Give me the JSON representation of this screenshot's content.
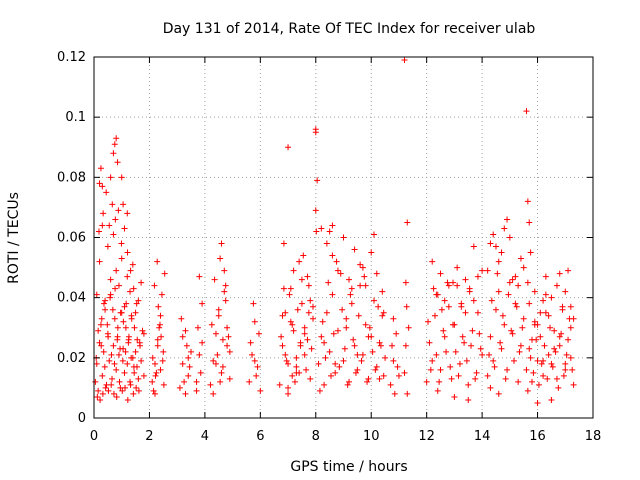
{
  "chart_data": {
    "type": "scatter",
    "title": "Day 131 of 2014, Rate Of TEC Index for receiver ulab",
    "xlabel": "GPS time / hours",
    "ylabel": "ROTI / TECUs",
    "xlim": [
      0,
      18
    ],
    "ylim": [
      0,
      0.12
    ],
    "xticks": [
      "0",
      "2",
      "4",
      "6",
      "8",
      "10",
      "12",
      "14",
      "16",
      "18"
    ],
    "yticks": [
      "0",
      "0.02",
      "0.04",
      "0.06",
      "0.08",
      "0.1",
      "0.12"
    ],
    "grid": true,
    "marker": "+",
    "color": "#ff0000",
    "series": [
      {
        "name": "ROTI",
        "x": [
          0.05,
          0.1,
          0.15,
          0.2,
          0.25,
          0.3,
          0.35,
          0.4,
          0.45,
          0.5,
          0.55,
          0.6,
          0.65,
          0.7,
          0.75,
          0.8,
          0.85,
          0.9,
          0.95,
          1.0,
          1.05,
          1.1,
          1.15,
          1.2,
          1.25,
          1.3,
          1.35,
          1.4,
          1.45,
          1.5,
          1.55,
          1.6,
          1.65,
          1.7,
          1.75,
          1.8,
          0.1,
          0.2,
          0.3,
          0.4,
          0.5,
          0.6,
          0.7,
          0.8,
          0.9,
          1.0,
          1.1,
          1.2,
          1.3,
          1.4,
          1.5,
          1.6,
          1.7,
          1.8,
          0.12,
          0.22,
          0.32,
          0.42,
          0.52,
          0.62,
          0.72,
          0.82,
          0.92,
          1.02,
          1.12,
          1.22,
          1.32,
          1.42,
          1.52,
          1.62,
          0.15,
          0.28,
          0.36,
          0.48,
          0.58,
          0.68,
          0.76,
          0.86,
          0.96,
          1.06,
          1.16,
          1.26,
          1.36,
          1.46,
          1.56,
          1.66,
          0.18,
          0.33,
          0.44,
          0.55,
          0.66,
          0.77,
          0.88,
          0.99,
          1.1,
          1.21,
          1.32,
          1.43,
          1.54,
          0.08,
          0.26,
          0.39,
          0.51,
          0.63,
          0.74,
          0.84,
          0.94,
          1.04,
          1.14,
          1.24,
          1.34,
          1.44,
          0.2,
          0.25,
          0.3,
          0.6,
          0.7,
          0.75,
          0.8,
          0.85,
          1.0,
          1.05,
          1.2,
          2.1,
          2.2,
          2.3,
          2.4,
          2.5,
          2.15,
          2.25,
          2.35,
          2.45,
          2.55,
          2.12,
          2.22,
          2.32,
          2.42,
          2.52,
          2.18,
          2.28,
          2.38,
          2.48,
          2.2,
          2.3,
          2.4,
          3.1,
          3.2,
          3.3,
          3.4,
          3.5,
          3.15,
          3.25,
          3.35,
          3.45,
          3.3,
          3.2,
          3.4,
          3.7,
          3.8,
          3.9,
          3.75,
          3.85,
          3.8,
          3.7,
          3.9,
          4.2,
          4.3,
          4.4,
          4.5,
          4.6,
          4.7,
          4.8,
          4.9,
          4.25,
          4.35,
          4.45,
          4.55,
          4.65,
          4.75,
          4.85,
          4.3,
          4.5,
          4.7,
          4.9,
          4.4,
          4.6,
          4.8,
          4.55,
          4.75,
          4.65,
          5.6,
          5.7,
          5.8,
          5.9,
          6.0,
          5.65,
          5.75,
          5.85,
          5.95,
          5.8,
          6.7,
          6.8,
          6.9,
          7.0,
          7.1,
          7.2,
          7.3,
          7.4,
          7.5,
          7.6,
          7.7,
          7.8,
          7.9,
          6.75,
          6.85,
          6.95,
          7.05,
          7.15,
          7.25,
          7.35,
          7.45,
          7.55,
          7.65,
          7.75,
          7.85,
          6.8,
          7.0,
          7.2,
          7.4,
          7.6,
          7.8,
          6.9,
          7.1,
          7.3,
          7.5,
          7.7,
          7.9,
          7.0,
          7.3,
          7.6,
          6.85,
          7.15,
          7.45,
          7.75,
          7.0,
          8.0,
          8.0,
          8.05,
          8.0,
          8.02,
          8.1,
          8.2,
          8.3,
          8.4,
          8.5,
          8.6,
          8.7,
          8.8,
          8.9,
          9.0,
          9.1,
          9.2,
          9.3,
          9.4,
          9.5,
          9.6,
          9.7,
          9.8,
          9.9,
          10.0,
          10.1,
          10.2,
          10.3,
          10.4,
          10.5,
          8.15,
          8.25,
          8.35,
          8.45,
          8.55,
          8.65,
          8.75,
          8.85,
          8.95,
          9.05,
          9.15,
          9.25,
          9.35,
          9.45,
          9.55,
          9.65,
          9.75,
          9.85,
          9.95,
          10.05,
          10.15,
          10.25,
          10.35,
          10.45,
          8.2,
          8.4,
          8.6,
          8.8,
          9.0,
          9.2,
          9.4,
          9.6,
          9.8,
          10.0,
          10.2,
          10.4,
          8.3,
          8.7,
          9.1,
          9.5,
          9.9,
          10.3,
          8.5,
          8.6,
          9.3,
          9.7,
          10.1,
          10.45,
          10.7,
          10.8,
          10.9,
          11.0,
          10.75,
          10.85,
          10.95,
          10.8,
          11.2,
          11.3,
          11.25,
          11.35,
          11.2,
          11.3,
          11.28,
          11.25,
          12.0,
          12.1,
          12.2,
          12.3,
          12.4,
          12.5,
          12.6,
          12.7,
          12.8,
          12.9,
          13.0,
          13.1,
          13.2,
          13.3,
          13.4,
          13.5,
          13.6,
          13.7,
          13.8,
          13.9,
          14.0,
          12.05,
          12.15,
          12.25,
          12.35,
          12.45,
          12.55,
          12.65,
          12.75,
          12.85,
          12.95,
          13.05,
          13.15,
          13.25,
          13.35,
          13.45,
          13.55,
          13.65,
          13.75,
          13.85,
          13.95,
          12.2,
          12.5,
          12.8,
          13.1,
          13.4,
          13.7,
          14.0,
          12.35,
          12.65,
          12.95,
          13.25,
          13.55,
          13.85,
          12.4,
          13.0,
          13.5,
          14.2,
          14.3,
          14.4,
          14.5,
          14.6,
          14.7,
          14.8,
          14.9,
          15.0,
          15.1,
          15.2,
          15.3,
          15.4,
          15.5,
          14.25,
          14.35,
          14.45,
          14.55,
          14.65,
          14.75,
          14.85,
          14.95,
          15.05,
          15.15,
          15.25,
          15.35,
          15.45,
          14.3,
          14.6,
          14.9,
          15.2,
          15.5,
          14.4,
          14.7,
          15.0,
          15.3,
          14.2,
          14.5,
          14.8,
          15.1,
          15.4,
          14.3,
          14.6,
          15.6,
          15.7,
          15.8,
          15.9,
          16.0,
          16.1,
          16.2,
          16.3,
          16.4,
          16.5,
          16.6,
          16.7,
          16.8,
          16.9,
          17.0,
          17.1,
          17.2,
          17.3,
          15.65,
          15.75,
          15.85,
          15.95,
          16.05,
          16.15,
          16.25,
          16.35,
          16.45,
          16.55,
          16.65,
          16.75,
          16.85,
          16.95,
          17.05,
          17.15,
          17.25,
          15.7,
          15.9,
          16.1,
          16.3,
          16.5,
          16.7,
          16.9,
          17.1,
          17.3,
          15.8,
          16.0,
          16.2,
          16.4,
          16.6,
          16.8,
          17.0,
          17.2,
          15.6,
          15.65,
          15.7,
          15.75,
          15.65,
          16.0,
          16.3,
          16.5,
          16.8,
          17.0,
          17.2,
          15.9,
          16.2
        ],
        "y": [
          0.012,
          0.018,
          0.009,
          0.025,
          0.031,
          0.014,
          0.022,
          0.036,
          0.011,
          0.028,
          0.019,
          0.041,
          0.013,
          0.024,
          0.033,
          0.016,
          0.027,
          0.021,
          0.01,
          0.035,
          0.023,
          0.015,
          0.03,
          0.018,
          0.026,
          0.012,
          0.034,
          0.02,
          0.015,
          0.022,
          0.017,
          0.013,
          0.025,
          0.019,
          0.029,
          0.014,
          0.041,
          0.052,
          0.064,
          0.039,
          0.057,
          0.046,
          0.061,
          0.049,
          0.044,
          0.053,
          0.037,
          0.047,
          0.042,
          0.051,
          0.035,
          0.039,
          0.045,
          0.028,
          0.007,
          0.006,
          0.008,
          0.01,
          0.009,
          0.011,
          0.008,
          0.007,
          0.012,
          0.009,
          0.01,
          0.006,
          0.011,
          0.008,
          0.01,
          0.009,
          0.029,
          0.033,
          0.038,
          0.031,
          0.04,
          0.036,
          0.043,
          0.03,
          0.035,
          0.032,
          0.038,
          0.027,
          0.033,
          0.03,
          0.026,
          0.024,
          0.062,
          0.068,
          0.075,
          0.064,
          0.071,
          0.066,
          0.069,
          0.058,
          0.063,
          0.055,
          0.049,
          0.043,
          0.038,
          0.02,
          0.024,
          0.017,
          0.027,
          0.021,
          0.018,
          0.026,
          0.023,
          0.019,
          0.022,
          0.025,
          0.02,
          0.017,
          0.078,
          0.083,
          0.077,
          0.08,
          0.088,
          0.091,
          0.093,
          0.085,
          0.08,
          0.071,
          0.068,
          0.012,
          0.018,
          0.026,
          0.034,
          0.022,
          0.009,
          0.015,
          0.03,
          0.041,
          0.048,
          0.02,
          0.014,
          0.037,
          0.027,
          0.011,
          0.044,
          0.052,
          0.031,
          0.019,
          0.008,
          0.024,
          0.016,
          0.01,
          0.018,
          0.029,
          0.014,
          0.022,
          0.033,
          0.012,
          0.024,
          0.017,
          0.008,
          0.027,
          0.02,
          0.012,
          0.021,
          0.038,
          0.03,
          0.015,
          0.047,
          0.009,
          0.025,
          0.011,
          0.019,
          0.028,
          0.036,
          0.015,
          0.042,
          0.024,
          0.013,
          0.031,
          0.046,
          0.021,
          0.053,
          0.017,
          0.039,
          0.027,
          0.008,
          0.034,
          0.049,
          0.022,
          0.018,
          0.058,
          0.03,
          0.012,
          0.044,
          0.026,
          0.012,
          0.021,
          0.032,
          0.017,
          0.009,
          0.025,
          0.038,
          0.014,
          0.028,
          0.019,
          0.011,
          0.024,
          0.035,
          0.018,
          0.043,
          0.029,
          0.015,
          0.052,
          0.038,
          0.021,
          0.047,
          0.013,
          0.033,
          0.027,
          0.058,
          0.019,
          0.041,
          0.031,
          0.012,
          0.036,
          0.025,
          0.054,
          0.016,
          0.044,
          0.023,
          0.034,
          0.01,
          0.049,
          0.015,
          0.028,
          0.039,
          0.021,
          0.032,
          0.017,
          0.046,
          0.026,
          0.037,
          0.008,
          0.02,
          0.03,
          0.043,
          0.014,
          0.024,
          0.035,
          0.09,
          0.096,
          0.095,
          0.079,
          0.069,
          0.062,
          0.018,
          0.027,
          0.011,
          0.035,
          0.022,
          0.041,
          0.015,
          0.029,
          0.048,
          0.019,
          0.033,
          0.012,
          0.038,
          0.024,
          0.016,
          0.044,
          0.021,
          0.031,
          0.013,
          0.027,
          0.039,
          0.017,
          0.025,
          0.034,
          0.02,
          0.009,
          0.032,
          0.02,
          0.045,
          0.014,
          0.028,
          0.052,
          0.017,
          0.036,
          0.023,
          0.011,
          0.041,
          0.026,
          0.015,
          0.034,
          0.019,
          0.047,
          0.012,
          0.03,
          0.022,
          0.016,
          0.037,
          0.024,
          0.014,
          0.063,
          0.058,
          0.054,
          0.049,
          0.06,
          0.046,
          0.056,
          0.051,
          0.044,
          0.055,
          0.048,
          0.042,
          0.025,
          0.018,
          0.03,
          0.021,
          0.027,
          0.013,
          0.062,
          0.064,
          0.043,
          0.05,
          0.061,
          0.035,
          0.011,
          0.019,
          0.028,
          0.014,
          0.024,
          0.008,
          0.017,
          0.033,
          0.119,
          0.065,
          0.045,
          0.03,
          0.015,
          0.008,
          0.037,
          0.024,
          0.012,
          0.025,
          0.019,
          0.034,
          0.041,
          0.016,
          0.029,
          0.022,
          0.037,
          0.013,
          0.031,
          0.044,
          0.018,
          0.027,
          0.035,
          0.011,
          0.024,
          0.039,
          0.015,
          0.028,
          0.021,
          0.032,
          0.016,
          0.043,
          0.021,
          0.012,
          0.036,
          0.027,
          0.045,
          0.017,
          0.031,
          0.022,
          0.014,
          0.038,
          0.025,
          0.019,
          0.042,
          0.029,
          0.013,
          0.035,
          0.023,
          0.052,
          0.048,
          0.044,
          0.05,
          0.046,
          0.057,
          0.049,
          0.041,
          0.039,
          0.045,
          0.037,
          0.043,
          0.047,
          0.009,
          0.007,
          0.006,
          0.014,
          0.027,
          0.019,
          0.036,
          0.042,
          0.023,
          0.031,
          0.016,
          0.045,
          0.028,
          0.038,
          0.012,
          0.024,
          0.033,
          0.021,
          0.039,
          0.017,
          0.048,
          0.025,
          0.034,
          0.013,
          0.041,
          0.029,
          0.019,
          0.037,
          0.022,
          0.03,
          0.058,
          0.052,
          0.066,
          0.047,
          0.05,
          0.061,
          0.055,
          0.06,
          0.044,
          0.049,
          0.057,
          0.063,
          0.046,
          0.053,
          0.01,
          0.008,
          0.016,
          0.023,
          0.012,
          0.031,
          0.019,
          0.027,
          0.014,
          0.035,
          0.021,
          0.018,
          0.029,
          0.013,
          0.024,
          0.037,
          0.016,
          0.026,
          0.02,
          0.011,
          0.009,
          0.02,
          0.015,
          0.026,
          0.011,
          0.018,
          0.024,
          0.013,
          0.03,
          0.017,
          0.022,
          0.01,
          0.028,
          0.014,
          0.021,
          0.033,
          0.016,
          0.038,
          0.042,
          0.035,
          0.047,
          0.04,
          0.044,
          0.036,
          0.049,
          0.033,
          0.026,
          0.031,
          0.019,
          0.034,
          0.023,
          0.027,
          0.018,
          0.03,
          0.102,
          0.072,
          0.065,
          0.055,
          0.045,
          0.005,
          0.041,
          0.006,
          0.048,
          0.042,
          0.037,
          0.032,
          0.039
        ]
      }
    ]
  }
}
